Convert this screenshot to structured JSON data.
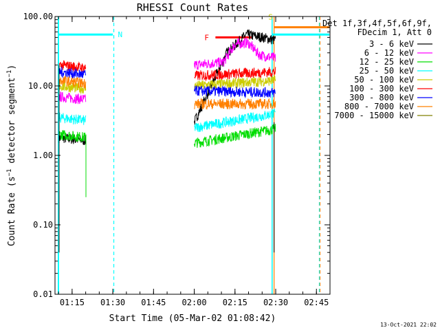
{
  "chart_data": {
    "type": "line",
    "title": "RHESSI Count Rates",
    "xlabel": "Start Time (05-Mar-02 01:08:42)",
    "ylabel": "Count Rate (s⁻¹ detector segment⁻¹)",
    "yscale": "log",
    "ylim": [
      0.01,
      100
    ],
    "xlim": [
      "01:08:42",
      "02:50:00"
    ],
    "y_ticks": [
      "0.01",
      "0.10",
      "1.00",
      "10.00",
      "100.00"
    ],
    "x_ticks": [
      "01:15",
      "01:30",
      "01:45",
      "02:00",
      "02:15",
      "02:30",
      "02:45"
    ],
    "legend_title": [
      "Det 1f,3f,4f,5f,6f,9f,",
      "FDecim 1, Att 0"
    ],
    "legend_position": "right",
    "footer": "13-Oct-2021 22:02",
    "series": [
      {
        "name": "3 - 6 keV",
        "color": "#000000",
        "seg1": 1.8,
        "seg2": [
          [
            2.0,
            3.0
          ],
          [
            2.2,
            30
          ],
          [
            2.32,
            55
          ],
          [
            2.42,
            50
          ],
          [
            2.5,
            45
          ]
        ]
      },
      {
        "name": "6 - 12 keV",
        "color": "#ff00ff",
        "seg1": 7.0,
        "seg2": [
          [
            2.0,
            20
          ],
          [
            2.18,
            22
          ],
          [
            2.25,
            40
          ],
          [
            2.33,
            42
          ],
          [
            2.4,
            28
          ],
          [
            2.5,
            25
          ]
        ]
      },
      {
        "name": "12 - 25 keV",
        "color": "#00dd00",
        "seg1": 2.0,
        "seg2": [
          [
            2.0,
            1.5
          ],
          [
            2.5,
            2.4
          ]
        ]
      },
      {
        "name": "25 - 50 keV",
        "color": "#00ffff",
        "seg1": 3.5,
        "seg2": [
          [
            2.0,
            2.5
          ],
          [
            2.5,
            4.0
          ]
        ]
      },
      {
        "name": "50 - 100 keV",
        "color": "#cccc00",
        "seg1": 10.0,
        "seg2": [
          [
            2.0,
            10
          ],
          [
            2.5,
            12
          ]
        ]
      },
      {
        "name": "100 - 300 keV",
        "color": "#ff0000",
        "seg1": 20.0,
        "seg2": [
          [
            2.0,
            14
          ],
          [
            2.5,
            16
          ]
        ]
      },
      {
        "name": "300 - 800 keV",
        "color": "#0000ff",
        "seg1": 16.0,
        "seg2": [
          [
            2.0,
            8.5
          ],
          [
            2.5,
            8.0
          ]
        ]
      },
      {
        "name": "800 - 7000 keV",
        "color": "#ff8000",
        "seg1": 12.0,
        "seg2": [
          [
            2.0,
            5.5
          ],
          [
            2.5,
            5.5
          ]
        ]
      },
      {
        "name": "7000 - 15000 keV",
        "color": "#808000",
        "seg1": null,
        "seg2": null
      }
    ],
    "annotations": [
      {
        "label": "N",
        "color": "#00ffff"
      },
      {
        "label": "F",
        "color": "#ff0000"
      },
      {
        "label": "S",
        "color": "#cccc00"
      }
    ]
  }
}
